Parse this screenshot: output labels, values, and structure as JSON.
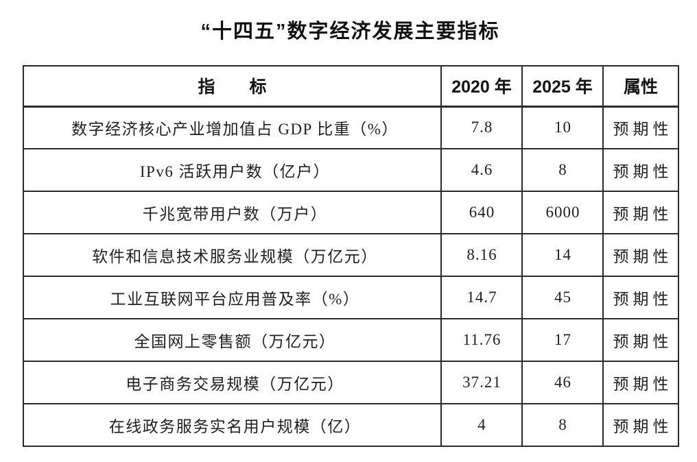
{
  "page": {
    "title": "“十四五”数字经济发展主要指标"
  },
  "table": {
    "headers": {
      "indicator": "指　　标",
      "y2020": "2020 年",
      "y2025": "2025 年",
      "attribute": "属性"
    },
    "rows": [
      {
        "indicator": "数字经济核心产业增加值占 GDP 比重（%）",
        "y2020": "7.8",
        "y2025": "10",
        "attribute": "预期性"
      },
      {
        "indicator": "IPv6 活跃用户数（亿户）",
        "y2020": "4.6",
        "y2025": "8",
        "attribute": "预期性"
      },
      {
        "indicator": "千兆宽带用户数（万户）",
        "y2020": "640",
        "y2025": "6000",
        "attribute": "预期性"
      },
      {
        "indicator": "软件和信息技术服务业规模（万亿元）",
        "y2020": "8.16",
        "y2025": "14",
        "attribute": "预期性"
      },
      {
        "indicator": "工业互联网平台应用普及率（%）",
        "y2020": "14.7",
        "y2025": "45",
        "attribute": "预期性"
      },
      {
        "indicator": "全国网上零售额（万亿元）",
        "y2020": "11.76",
        "y2025": "17",
        "attribute": "预期性"
      },
      {
        "indicator": "电子商务交易规模（万亿元）",
        "y2020": "37.21",
        "y2025": "46",
        "attribute": "预期性"
      },
      {
        "indicator": "在线政务服务实名用户规模（亿）",
        "y2020": "4",
        "y2025": "8",
        "attribute": "预期性"
      }
    ],
    "colors": {
      "border": "#2a2a2a",
      "text": "#1f1f1f",
      "background": "#ffffff"
    }
  }
}
